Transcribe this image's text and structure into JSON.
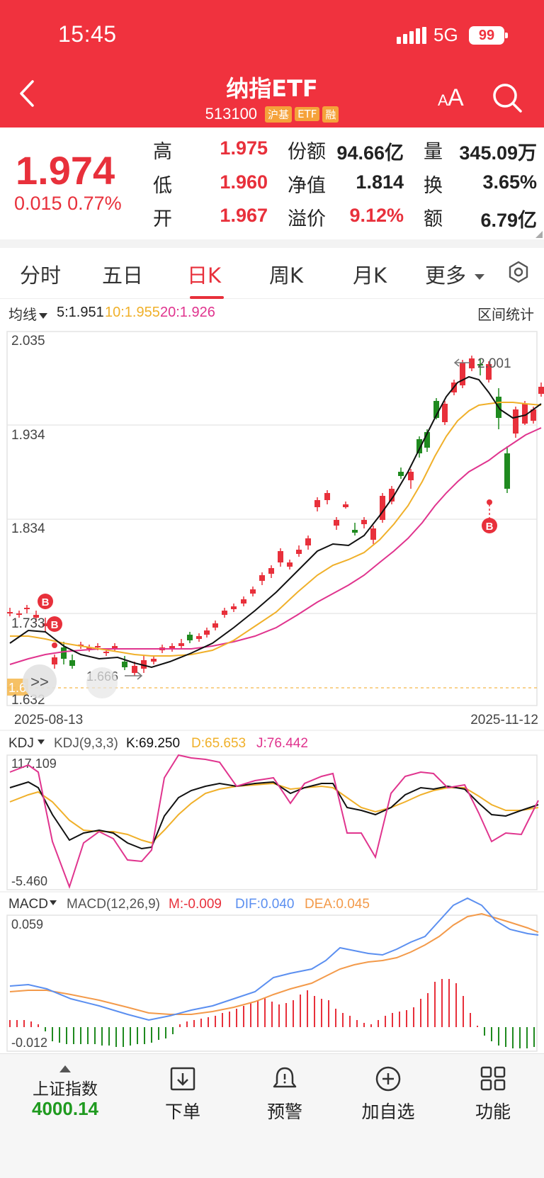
{
  "status_bar": {
    "time": "15:45",
    "network": "5G",
    "battery": "99"
  },
  "nav": {
    "title": "纳指ETF",
    "code": "513100",
    "tags": [
      "沪基",
      "ETF",
      "融"
    ]
  },
  "quote": {
    "price": "1.974",
    "change": "0.015",
    "change_pct": "0.77%",
    "fields": [
      {
        "label": "高",
        "value": "1.975"
      },
      {
        "label": "低",
        "value": "1.960"
      },
      {
        "label": "开",
        "value": "1.967"
      },
      {
        "label": "份额",
        "value": "94.66亿"
      },
      {
        "label": "净值",
        "value": "1.814"
      },
      {
        "label": "溢价",
        "value": "9.12%"
      },
      {
        "label": "量",
        "value": "345.09万"
      },
      {
        "label": "换",
        "value": "3.65%"
      },
      {
        "label": "额",
        "value": "6.79亿"
      }
    ]
  },
  "tabs": [
    "分时",
    "五日",
    "日K",
    "周K",
    "月K",
    "更多"
  ],
  "active_tab": "日K",
  "ma_bar": {
    "selector": "均线",
    "ma5": "5:1.951",
    "ma10": "10:1.955",
    "ma20": "20:1.926",
    "stats_button": "区间统计"
  },
  "kline": {
    "y_labels": [
      "2.035",
      "1.934",
      "1.834",
      "1.733",
      "1.632"
    ],
    "start_date": "2025-08-13",
    "end_date": "2025-11-12",
    "high_annotation": "2.001",
    "low_annotation": "1.666",
    "current_line_label": "1.6",
    "signal_label": "B",
    "expand_label": ">>"
  },
  "kdj": {
    "selector": "KDJ",
    "params": "KDJ(9,3,3)",
    "k": "K:69.250",
    "d": "D:65.653",
    "j": "J:76.442",
    "max": "117.109",
    "min": "-5.460"
  },
  "macd": {
    "selector": "MACD",
    "params": "MACD(12,26,9)",
    "m": "M:-0.009",
    "dif": "DIF:0.040",
    "dea": "DEA:0.045",
    "max": "0.059",
    "min": "-0.012"
  },
  "colors": {
    "up": "#e8303b",
    "down": "#1f8a1f",
    "ma5": "#111111",
    "ma10": "#f0b02a",
    "ma20": "#e0348e",
    "dif": "#5b8ff0",
    "dea": "#f39a4a"
  },
  "bottom_bar": {
    "index_name": "上证指数",
    "index_value": "4000.14",
    "items": [
      {
        "label": "下单",
        "icon": "download-order-icon"
      },
      {
        "label": "预警",
        "icon": "bell-alert-icon"
      },
      {
        "label": "加自选",
        "icon": "add-circle-icon"
      },
      {
        "label": "功能",
        "icon": "grid-function-icon"
      }
    ]
  }
}
